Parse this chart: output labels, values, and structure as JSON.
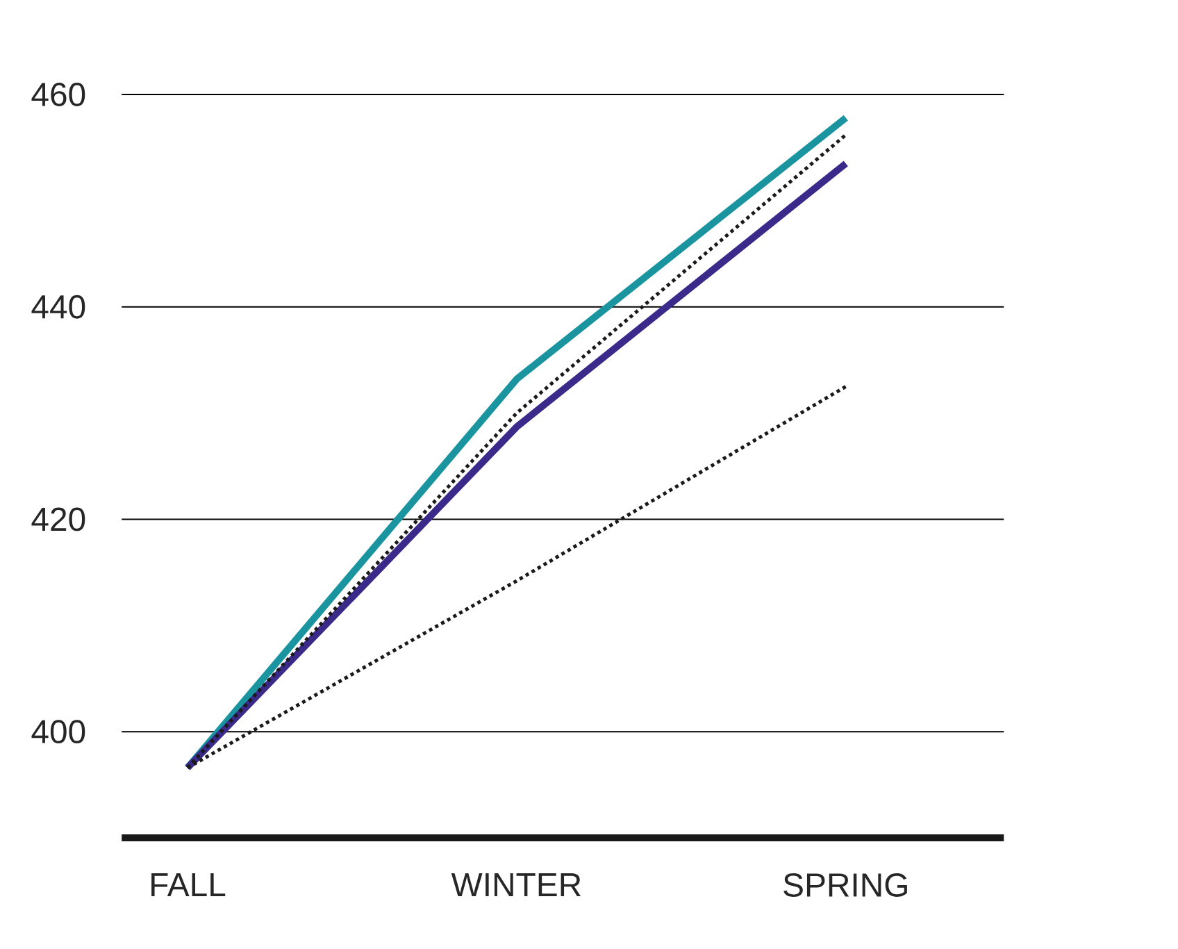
{
  "chart_data": {
    "type": "line",
    "categories": [
      "FALL",
      "WINTER",
      "SPRING"
    ],
    "series": [
      {
        "color": "#1a959f",
        "values": [
          396.6,
          433.2,
          457.8
        ],
        "line_style": "solid"
      },
      {
        "color": "#3b2a8a",
        "values": [
          396.6,
          428.7,
          453.5
        ],
        "line_style": "solid"
      },
      {
        "color": "#1a1a1a",
        "values": [
          396.6,
          430.0,
          456.2
        ],
        "line_style": "dotted"
      },
      {
        "color": "#1a1a1a",
        "values": [
          396.6,
          414.2,
          432.5
        ],
        "line_style": "dotted"
      }
    ],
    "ylim": [
      390,
      460
    ],
    "yticks": [
      400,
      420,
      440,
      460
    ],
    "grid": "y",
    "marker": "none"
  }
}
